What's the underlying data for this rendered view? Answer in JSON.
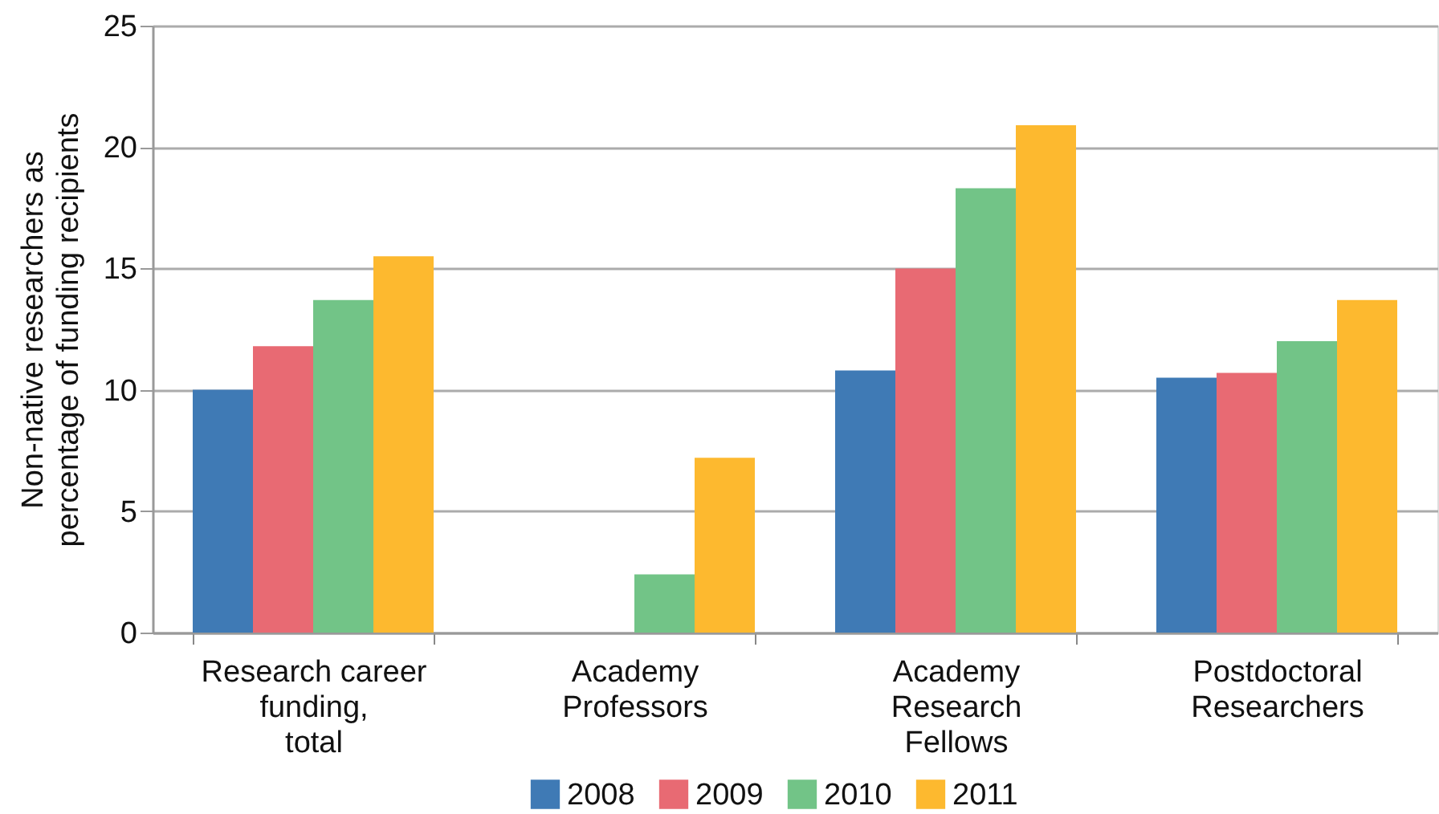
{
  "chart_data": {
    "type": "bar",
    "ylabel": "Non-native researchers as\npercentage of funding recipients",
    "categories": [
      "Research career\nfunding,\ntotal",
      "Academy\nProfessors",
      "Academy\nResearch\nFellows",
      "Postdoctoral\nResearchers"
    ],
    "series": [
      {
        "name": "2008",
        "color": "#3f7ab5",
        "values": [
          10.0,
          null,
          10.8,
          10.5
        ]
      },
      {
        "name": "2009",
        "color": "#e86a73",
        "values": [
          11.8,
          null,
          15.0,
          10.7
        ]
      },
      {
        "name": "2010",
        "color": "#72c487",
        "values": [
          13.7,
          2.4,
          18.3,
          12.0
        ]
      },
      {
        "name": "2011",
        "color": "#fdb92f",
        "values": [
          15.5,
          7.2,
          20.9,
          13.7
        ]
      }
    ],
    "ylim": [
      0,
      25
    ],
    "yticks": [
      0,
      5,
      10,
      15,
      20,
      25
    ],
    "grid": "y",
    "legend": "bottom"
  }
}
